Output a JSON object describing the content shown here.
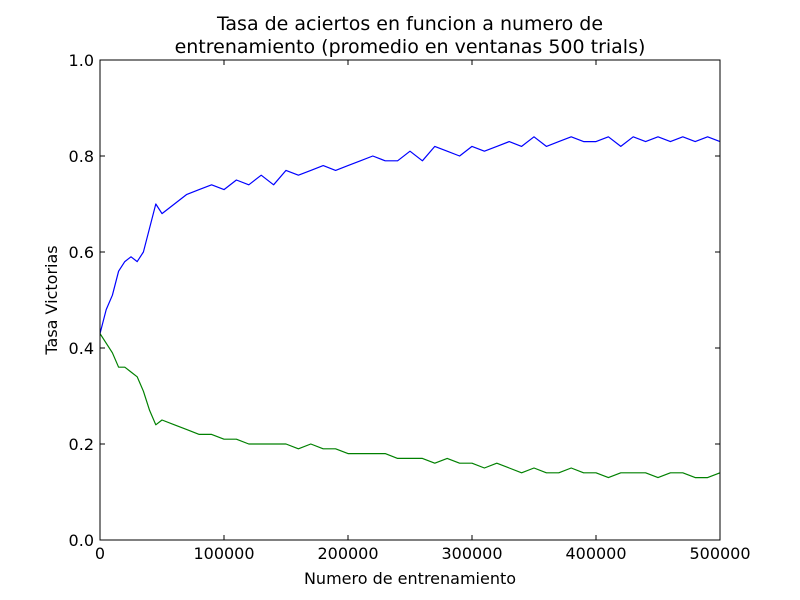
{
  "chart_data": {
    "type": "line",
    "title": [
      "Tasa de aciertos en funcion a numero de",
      "entrenamiento (promedio en ventanas 500 trials)"
    ],
    "xlabel": "Numero de entrenamiento",
    "ylabel": "Tasa Victorias",
    "xlim": [
      0,
      500000
    ],
    "ylim": [
      0.0,
      1.0
    ],
    "xticks": [
      0,
      100000,
      200000,
      300000,
      400000,
      500000
    ],
    "xtick_labels": [
      "0",
      "100000",
      "200000",
      "300000",
      "400000",
      "500000"
    ],
    "yticks": [
      0.0,
      0.2,
      0.4,
      0.6,
      0.8,
      1.0
    ],
    "ytick_labels": [
      "0.0",
      "0.2",
      "0.4",
      "0.6",
      "0.8",
      "1.0"
    ],
    "grid": false,
    "legend": "none",
    "x": [
      0,
      5000,
      10000,
      15000,
      20000,
      25000,
      30000,
      35000,
      40000,
      45000,
      50000,
      60000,
      70000,
      80000,
      90000,
      100000,
      110000,
      120000,
      130000,
      140000,
      150000,
      160000,
      170000,
      180000,
      190000,
      200000,
      210000,
      220000,
      230000,
      240000,
      250000,
      260000,
      270000,
      280000,
      290000,
      300000,
      310000,
      320000,
      330000,
      340000,
      350000,
      360000,
      370000,
      380000,
      390000,
      400000,
      410000,
      420000,
      430000,
      440000,
      450000,
      460000,
      470000,
      480000,
      490000,
      500000
    ],
    "series": [
      {
        "color": "#0000ff",
        "values": [
          0.43,
          0.48,
          0.51,
          0.56,
          0.58,
          0.59,
          0.58,
          0.6,
          0.65,
          0.7,
          0.68,
          0.7,
          0.72,
          0.73,
          0.74,
          0.73,
          0.75,
          0.74,
          0.76,
          0.74,
          0.77,
          0.76,
          0.77,
          0.78,
          0.77,
          0.78,
          0.79,
          0.8,
          0.79,
          0.79,
          0.81,
          0.79,
          0.82,
          0.81,
          0.8,
          0.82,
          0.81,
          0.82,
          0.83,
          0.82,
          0.84,
          0.82,
          0.83,
          0.84,
          0.83,
          0.83,
          0.84,
          0.82,
          0.84,
          0.83,
          0.84,
          0.83,
          0.84,
          0.83,
          0.84,
          0.83
        ]
      },
      {
        "color": "#008000",
        "values": [
          0.43,
          0.41,
          0.39,
          0.36,
          0.36,
          0.35,
          0.34,
          0.31,
          0.27,
          0.24,
          0.25,
          0.24,
          0.23,
          0.22,
          0.22,
          0.21,
          0.21,
          0.2,
          0.2,
          0.2,
          0.2,
          0.19,
          0.2,
          0.19,
          0.19,
          0.18,
          0.18,
          0.18,
          0.18,
          0.17,
          0.17,
          0.17,
          0.16,
          0.17,
          0.16,
          0.16,
          0.15,
          0.16,
          0.15,
          0.14,
          0.15,
          0.14,
          0.14,
          0.15,
          0.14,
          0.14,
          0.13,
          0.14,
          0.14,
          0.14,
          0.13,
          0.14,
          0.14,
          0.13,
          0.13,
          0.14
        ]
      }
    ]
  }
}
